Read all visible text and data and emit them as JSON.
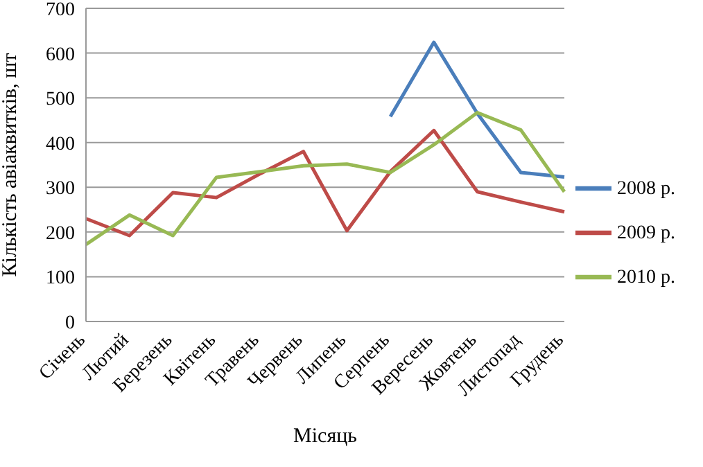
{
  "chart_data": {
    "type": "line",
    "xlabel": "Місяць",
    "ylabel": "Кількість авіаквитків, шт",
    "categories": [
      "Січень",
      "Лютий",
      "Березень",
      "Квітень",
      "Травень",
      "Червень",
      "Липень",
      "Серпень",
      "Вересень",
      "Жовтень",
      "Листопад",
      "Грудень"
    ],
    "series": [
      {
        "name": "2008 р.",
        "color": "#4a7ebb",
        "values": [
          null,
          null,
          null,
          null,
          null,
          null,
          null,
          458,
          624,
          465,
          333,
          323
        ]
      },
      {
        "name": "2009 р.",
        "color": "#be4b48",
        "values": [
          230,
          192,
          288,
          277,
          330,
          380,
          203,
          335,
          427,
          290,
          267,
          245
        ]
      },
      {
        "name": "2010 р.",
        "color": "#98b954",
        "values": [
          172,
          238,
          192,
          322,
          335,
          348,
          352,
          333,
          395,
          467,
          428,
          290
        ]
      }
    ],
    "ylim": [
      0,
      700
    ],
    "yticks": [
      0,
      100,
      200,
      300,
      400,
      500,
      600,
      700
    ],
    "grid": "y",
    "legend": "right",
    "marker": "none",
    "line_style": "solid"
  }
}
